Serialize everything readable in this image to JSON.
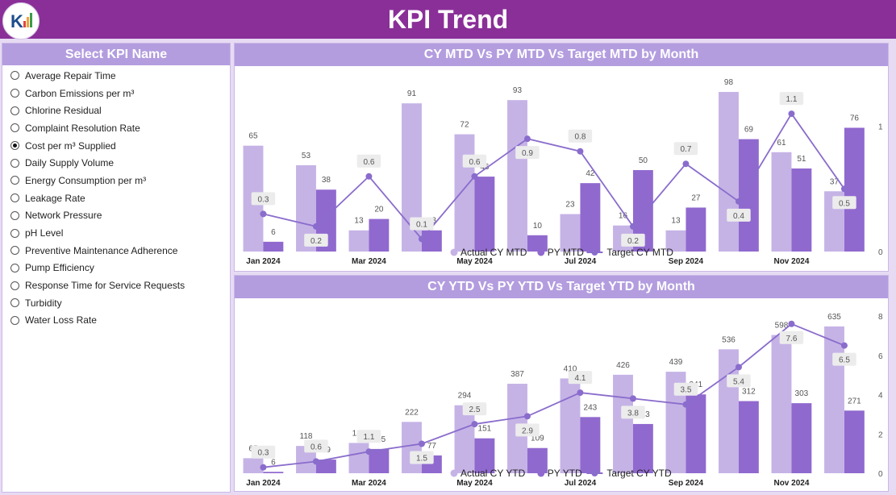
{
  "header": {
    "title": "KPI Trend"
  },
  "sidebar": {
    "title": "Select KPI Name",
    "items": [
      {
        "label": "Average Repair Time",
        "checked": false
      },
      {
        "label": "Carbon Emissions per m³",
        "checked": false
      },
      {
        "label": "Chlorine Residual",
        "checked": false
      },
      {
        "label": "Complaint Resolution Rate",
        "checked": false
      },
      {
        "label": "Cost per m³ Supplied",
        "checked": true
      },
      {
        "label": "Daily Supply Volume",
        "checked": false
      },
      {
        "label": "Energy Consumption per m³",
        "checked": false
      },
      {
        "label": "Leakage Rate",
        "checked": false
      },
      {
        "label": "Network Pressure",
        "checked": false
      },
      {
        "label": "pH Level",
        "checked": false
      },
      {
        "label": "Preventive Maintenance Adherence",
        "checked": false
      },
      {
        "label": "Pump Efficiency",
        "checked": false
      },
      {
        "label": "Response Time for Service Requests",
        "checked": false
      },
      {
        "label": "Turbidity",
        "checked": false
      },
      {
        "label": "Water Loss Rate",
        "checked": false
      }
    ]
  },
  "colors": {
    "actual": "#c5b3e6",
    "previous": "#9069cf",
    "target": "#8a6ccc",
    "header": "#8a2f98",
    "panel_head": "#b39ddf"
  },
  "chart_data": [
    {
      "type": "bar",
      "title": "CY MTD Vs PY MTD Vs Target MTD by Month",
      "tick_labels": [
        "Jan 2024",
        "",
        "Mar 2024",
        "",
        "May 2024",
        "",
        "Jul 2024",
        "",
        "Sep 2024",
        "",
        "Nov 2024",
        ""
      ],
      "series": [
        {
          "name": "Actual CY MTD",
          "values": [
            65,
            53,
            13,
            91,
            72,
            93,
            23,
            16,
            13,
            98,
            61,
            37
          ]
        },
        {
          "name": "PY MTD",
          "values": [
            6,
            38,
            20,
            13,
            46,
            10,
            42,
            50,
            27,
            69,
            51,
            76
          ]
        },
        {
          "name": "Target CY MTD",
          "values": [
            0.3,
            0.2,
            0.6,
            0.1,
            0.6,
            0.9,
            0.8,
            0.2,
            0.7,
            0.4,
            1.1,
            0.5
          ]
        }
      ],
      "ylim_bars": [
        0,
        100
      ],
      "ylim_line": [
        0,
        1.3
      ],
      "right_axis_ticks": [
        "0",
        "1"
      ],
      "legend": "bottom"
    },
    {
      "type": "bar",
      "title": "CY YTD Vs PY YTD Vs Target YTD by Month",
      "tick_labels": [
        "Jan 2024",
        "",
        "Mar 2024",
        "",
        "May 2024",
        "",
        "Jul 2024",
        "",
        "Sep 2024",
        "",
        "Nov 2024",
        ""
      ],
      "series": [
        {
          "name": "Actual CY YTD",
          "values": [
            65,
            118,
            131,
            222,
            294,
            387,
            410,
            426,
            439,
            536,
            598,
            635
          ]
        },
        {
          "name": "PY YTD",
          "values": [
            6,
            59,
            105,
            77,
            151,
            109,
            243,
            213,
            341,
            312,
            303,
            271
          ]
        },
        {
          "name": "Target CY YTD",
          "values": [
            0.3,
            0.6,
            1.1,
            1.5,
            2.5,
            2.9,
            4.1,
            3.8,
            3.5,
            5.4,
            7.6,
            6.5
          ]
        }
      ],
      "ylim_bars": [
        0,
        680
      ],
      "ylim_line": [
        0,
        8
      ],
      "right_axis_ticks": [
        "0",
        "2",
        "4",
        "6",
        "8"
      ],
      "legend": "bottom"
    }
  ]
}
